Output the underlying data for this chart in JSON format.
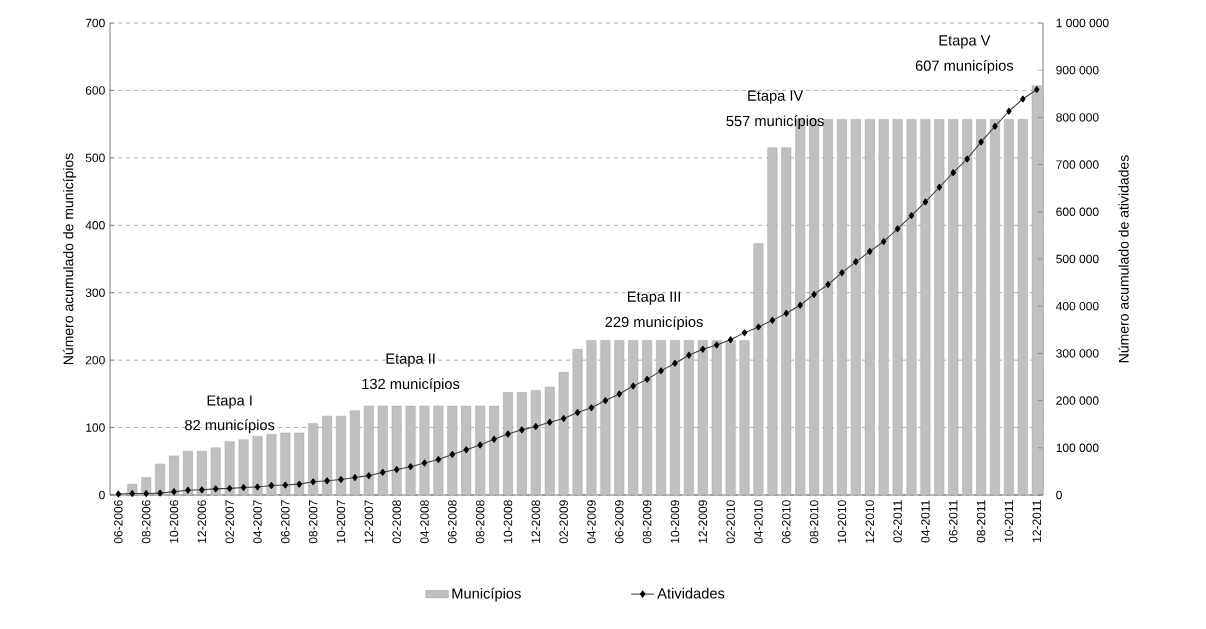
{
  "chart_data": {
    "type": "bar",
    "ylabel": "Número acumulado de municípios",
    "y2label": "Número acumulado de atividades",
    "categories": [
      "06-2006",
      null,
      "08-2006",
      null,
      "10-2006",
      null,
      "12-2006",
      null,
      "02-2007",
      null,
      "04-2007",
      null,
      "06-2007",
      null,
      "08-2007",
      null,
      "10-2007",
      null,
      "12-2007",
      null,
      "02-2008",
      null,
      "04-2008",
      null,
      "06-2008",
      null,
      "08-2008",
      null,
      "10-2008",
      null,
      "12-2008",
      null,
      "02-2009",
      null,
      "04-2009",
      null,
      "06-2009",
      null,
      "08-2009",
      null,
      "10-2009",
      null,
      "12-2009",
      null,
      "02-2010",
      null,
      "04-2010",
      null,
      "06-2010",
      null,
      "08-2010",
      null,
      "10-2010",
      null,
      "12-2010",
      null,
      "02-2011",
      null,
      "04-2011",
      null,
      "06-2011",
      null,
      "08-2011",
      null,
      "10-2011",
      null,
      "12-2011"
    ],
    "series": [
      {
        "name": "Municípios",
        "color": "#c0c0c0",
        "values": [
          null,
          16,
          26,
          46,
          58,
          65,
          65,
          70,
          79,
          82,
          87,
          90,
          92,
          92,
          106,
          117,
          117,
          125,
          132,
          132,
          132,
          132,
          132,
          132,
          132,
          132,
          132,
          132,
          152,
          152,
          155,
          160,
          182,
          216,
          229,
          229,
          229,
          229,
          229,
          229,
          229,
          229,
          229,
          229,
          229,
          229,
          373,
          515,
          515,
          557,
          557,
          557,
          557,
          557,
          557,
          557,
          557,
          557,
          557,
          557,
          557,
          557,
          557,
          557,
          557,
          557,
          607
        ]
      },
      {
        "name": "Atividades",
        "type": "line",
        "axis": "y2",
        "color": "#000000",
        "marker": "diamond",
        "values": [
          2000,
          3000,
          3000,
          4000,
          7000,
          10000,
          11000,
          13000,
          14000,
          16000,
          17000,
          20000,
          21000,
          23000,
          28000,
          30000,
          33000,
          37000,
          41000,
          48000,
          54000,
          60000,
          68000,
          75000,
          86000,
          96000,
          106000,
          118000,
          129000,
          138000,
          145000,
          154000,
          162000,
          175000,
          185000,
          200000,
          214000,
          231000,
          245000,
          263000,
          279000,
          296000,
          309000,
          318000,
          329000,
          344000,
          356000,
          370000,
          385000,
          402000,
          425000,
          446000,
          471000,
          494000,
          516000,
          537000,
          564000,
          592000,
          621000,
          652000,
          683000,
          712000,
          748000,
          781000,
          813000,
          839000,
          859000
        ]
      }
    ],
    "ylim": [
      0,
      700
    ],
    "yticks": [
      0,
      100,
      200,
      300,
      400,
      500,
      600,
      700
    ],
    "y2lim": [
      0,
      1000000
    ],
    "y2ticks": [
      0,
      {
        "value": 100000,
        "label": "100 000"
      },
      {
        "value": 200000,
        "label": "200 000"
      },
      {
        "value": 300000,
        "label": "300 000"
      },
      {
        "value": 400000,
        "label": "400 000"
      },
      {
        "value": 500000,
        "label": "500 000"
      },
      {
        "value": 600000,
        "label": "600 000"
      },
      {
        "value": 700000,
        "label": "700 000"
      },
      {
        "value": 800000,
        "label": "800 000"
      },
      {
        "value": 900000,
        "label": "900 000"
      },
      {
        "value": 1000000,
        "label": "1 000 000"
      }
    ],
    "grid": "y",
    "legend": "bottom",
    "annotations": [
      "Etapa I",
      "82 municípios",
      "Etapa II",
      "132 municípios",
      "Etapa III",
      "229 municípios",
      "Etapa IV",
      "557 municípios",
      "Etapa V",
      "607 municípios"
    ]
  }
}
